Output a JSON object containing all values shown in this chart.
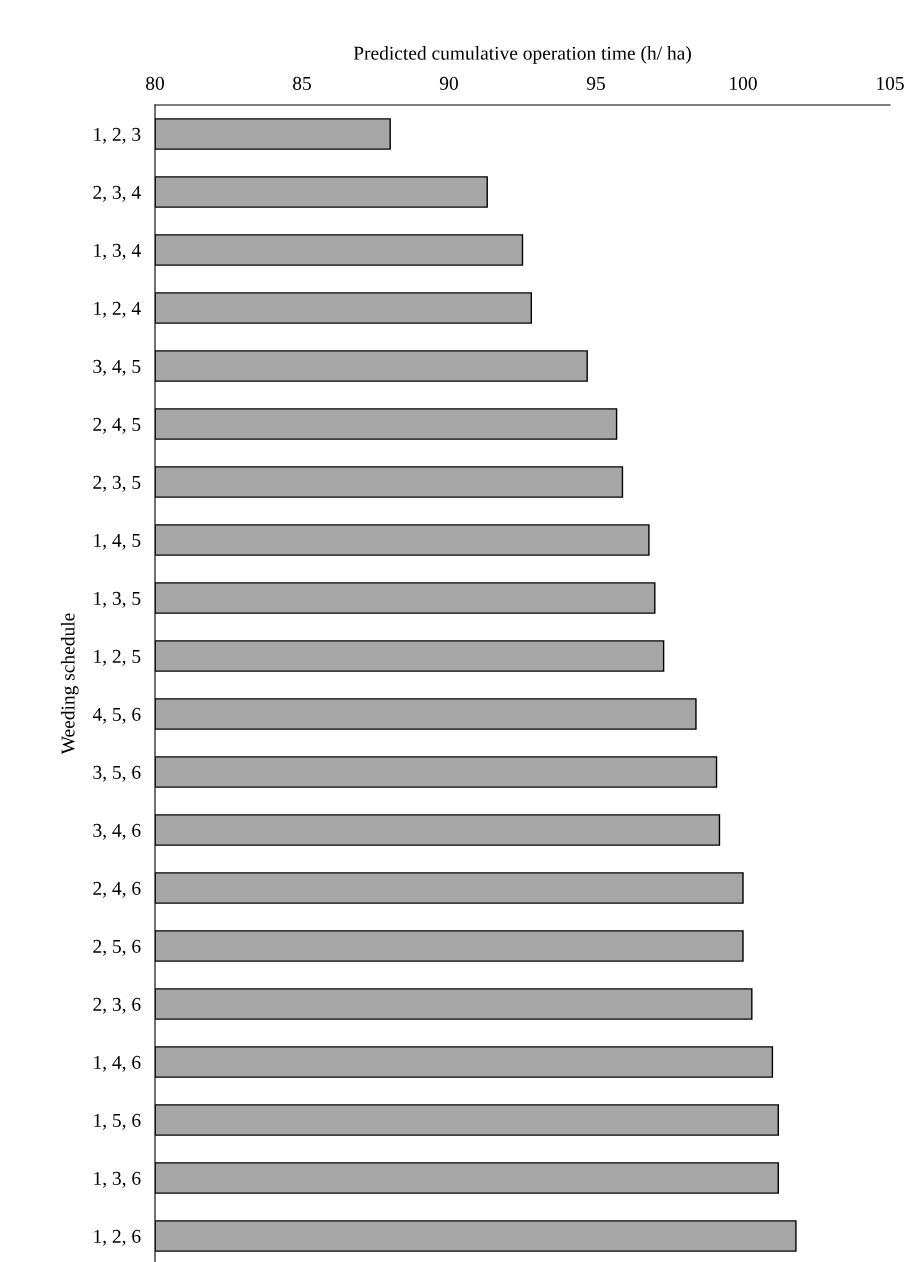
{
  "chart_data": {
    "type": "bar",
    "orientation": "horizontal",
    "xlabel": "Predicted cumulative operation time (h/ ha)",
    "ylabel": "Weeding schedule",
    "categories": [
      "1, 2, 3",
      "2, 3, 4",
      "1, 3, 4",
      "1, 2, 4",
      "3, 4, 5",
      "2, 4, 5",
      "2, 3, 5",
      "1, 4, 5",
      "1, 3, 5",
      "1, 2, 5",
      "4, 5, 6",
      "3, 5, 6",
      "3, 4, 6",
      "2, 4, 6",
      "2, 5, 6",
      "2, 3, 6",
      "1, 4, 6",
      "1, 5, 6",
      "1, 3, 6",
      "1, 2, 6"
    ],
    "values": [
      88.0,
      91.3,
      92.5,
      92.8,
      94.7,
      95.7,
      95.9,
      96.8,
      97.0,
      97.3,
      98.4,
      99.1,
      99.2,
      100.0,
      100.0,
      100.3,
      101.0,
      101.2,
      101.2,
      101.8
    ],
    "color": "#a6a6a6",
    "xlim": [
      80,
      105
    ],
    "xticks": [
      80,
      85,
      90,
      95,
      100,
      105
    ],
    "grid": false,
    "legend": false
  }
}
